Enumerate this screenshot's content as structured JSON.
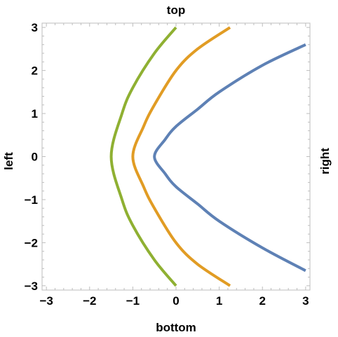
{
  "chart_data": {
    "type": "line",
    "labels": {
      "top": "top",
      "bottom": "bottom",
      "left": "left",
      "right": "right"
    },
    "xlim": [
      -3.1,
      3.1
    ],
    "ylim": [
      -3.1,
      3.1
    ],
    "x_ticks": [
      -3,
      -2,
      -1,
      0,
      1,
      2,
      3
    ],
    "x_tick_labels": [
      "−3",
      "−2",
      "−1",
      "0",
      "1",
      "2",
      "3"
    ],
    "y_ticks": [
      -3,
      -2,
      -1,
      0,
      1,
      2,
      3
    ],
    "y_tick_labels": [
      "−3",
      "−2",
      "−1",
      "0",
      "1",
      "2",
      "3"
    ],
    "grid": false,
    "series": [
      {
        "color": "#5e81b5",
        "points": [
          [
            3.0,
            -2.65
          ],
          [
            2.0,
            -2.12
          ],
          [
            1.0,
            -1.5
          ],
          [
            0.5,
            -1.1
          ],
          [
            0.0,
            -0.7
          ],
          [
            -0.25,
            -0.4
          ],
          [
            -0.5,
            0.0
          ],
          [
            -0.25,
            0.4
          ],
          [
            0.0,
            0.7
          ],
          [
            0.5,
            1.1
          ],
          [
            1.0,
            1.5
          ],
          [
            2.0,
            2.12
          ],
          [
            3.0,
            2.6
          ]
        ]
      },
      {
        "color": "#e19c24",
        "points": [
          [
            1.25,
            -3.0
          ],
          [
            0.5,
            -2.5
          ],
          [
            0.0,
            -2.0
          ],
          [
            -0.5,
            -1.2
          ],
          [
            -0.75,
            -0.7
          ],
          [
            -1.0,
            0.0
          ],
          [
            -0.75,
            0.7
          ],
          [
            -0.5,
            1.2
          ],
          [
            0.0,
            2.0
          ],
          [
            0.5,
            2.5
          ],
          [
            1.25,
            3.0
          ]
        ]
      },
      {
        "color": "#8fb032",
        "points": [
          [
            0.0,
            -3.0
          ],
          [
            -0.5,
            -2.4
          ],
          [
            -1.0,
            -1.6
          ],
          [
            -1.25,
            -1.0
          ],
          [
            -1.5,
            0.0
          ],
          [
            -1.25,
            1.0
          ],
          [
            -1.0,
            1.6
          ],
          [
            -0.5,
            2.4
          ],
          [
            0.0,
            3.0
          ]
        ]
      }
    ]
  }
}
